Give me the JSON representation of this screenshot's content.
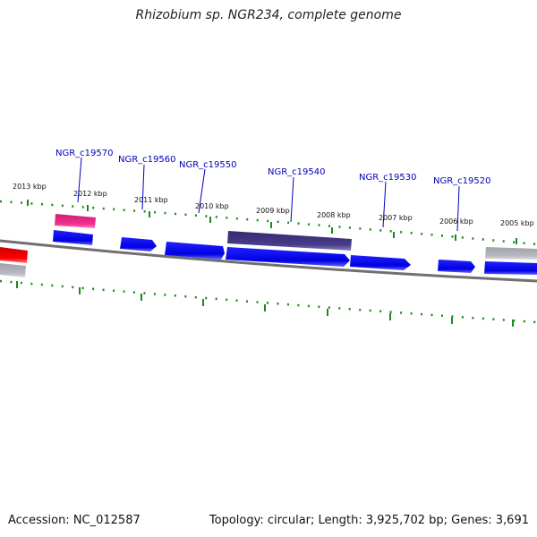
{
  "title": "Rhizobium sp. NGR234, complete genome",
  "footer": {
    "accession": "Accession: NC_012587",
    "topology": "Topology: circular; Length: 3,925,702 bp; Genes: 3,691"
  },
  "scale_labels": [
    "2013 kbp",
    "2012 kbp",
    "2011 kbp",
    "2010 kbp",
    "2009 kbp",
    "2008 kbp",
    "2007 kbp",
    "2006 kbp",
    "2005 kbp"
  ],
  "gene_labels": [
    "NGR_c19570",
    "NGR_c19560",
    "NGR_c19550",
    "NGR_c19540",
    "NGR_c19530",
    "NGR_c19520"
  ],
  "colors": {
    "forward_gene": "#0000ee",
    "pink_gene": "#ee2288",
    "dark_gene": "#403880",
    "red_gene": "#ee0000",
    "grey_gene": "#b0b0b8",
    "backbone": "#707070",
    "tick": "#1a8a1a",
    "label": "#0000bb"
  }
}
